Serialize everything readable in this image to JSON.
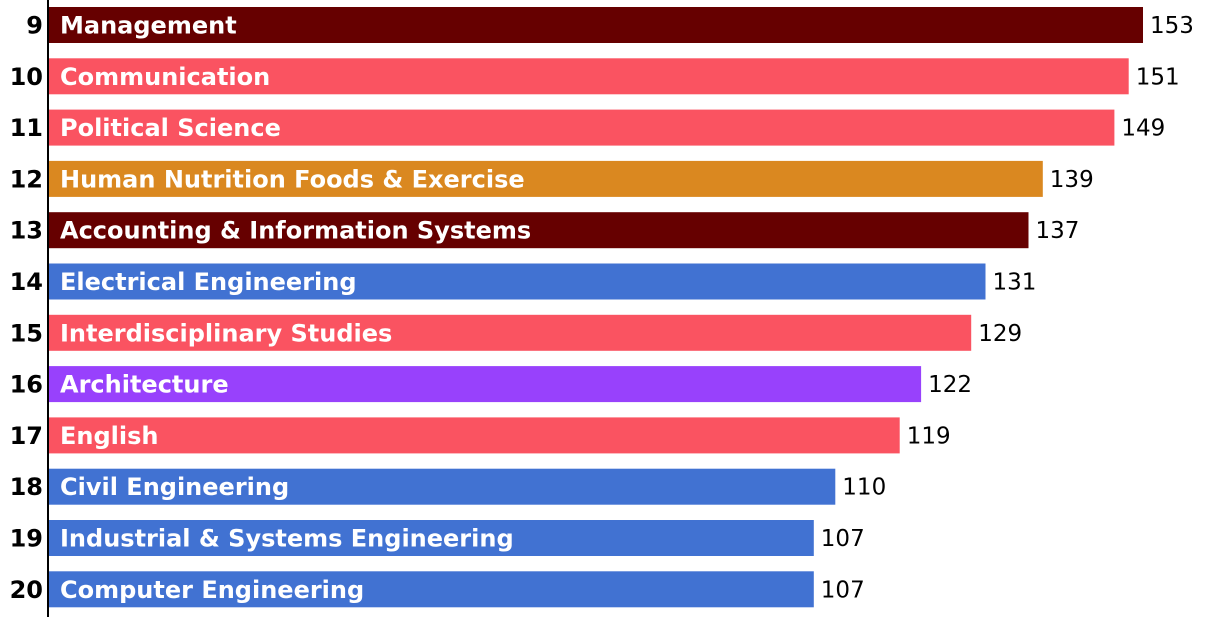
{
  "chart_data": {
    "type": "bar",
    "orientation": "horizontal",
    "title": "",
    "xlabel": "",
    "ylabel": "",
    "xlim": [
      0,
      153
    ],
    "grid": false,
    "legend": "none",
    "colors": {
      "maroon": "#660000",
      "coral": "#FA5361",
      "orange": "#DA8820",
      "blue": "#4172D2",
      "purple": "#9841FC"
    },
    "bars": [
      {
        "rank": "9",
        "label": "Management",
        "value": 153,
        "color": "#660000"
      },
      {
        "rank": "10",
        "label": "Communication",
        "value": 151,
        "color": "#FA5361"
      },
      {
        "rank": "11",
        "label": "Political Science",
        "value": 149,
        "color": "#FA5361"
      },
      {
        "rank": "12",
        "label": "Human Nutrition Foods & Exercise",
        "value": 139,
        "color": "#DA8820"
      },
      {
        "rank": "13",
        "label": "Accounting & Information Systems",
        "value": 137,
        "color": "#660000"
      },
      {
        "rank": "14",
        "label": "Electrical Engineering",
        "value": 131,
        "color": "#4172D2"
      },
      {
        "rank": "15",
        "label": "Interdisciplinary Studies",
        "value": 129,
        "color": "#FA5361"
      },
      {
        "rank": "16",
        "label": "Architecture",
        "value": 122,
        "color": "#9841FC"
      },
      {
        "rank": "17",
        "label": "English",
        "value": 119,
        "color": "#FA5361"
      },
      {
        "rank": "18",
        "label": "Civil Engineering",
        "value": 110,
        "color": "#4172D2"
      },
      {
        "rank": "19",
        "label": "Industrial & Systems Engineering",
        "value": 107,
        "color": "#4172D2"
      },
      {
        "rank": "20",
        "label": "Computer Engineering",
        "value": 107,
        "color": "#4172D2"
      }
    ]
  }
}
